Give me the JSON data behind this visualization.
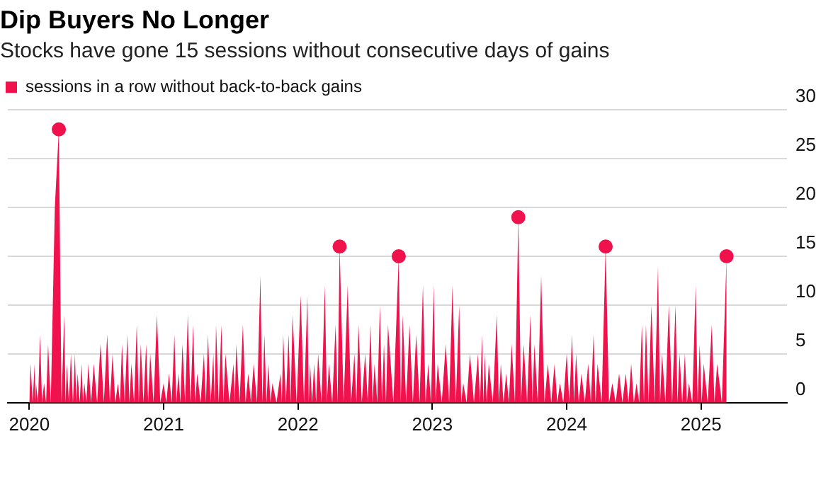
{
  "chart_data": {
    "type": "area",
    "title": "Dip Buyers No Longer",
    "subtitle": "Stocks have gone 15 sessions without consecutive days of gains",
    "series": [
      {
        "name": "sessions in a row without back-to-back gains",
        "type": "area",
        "color": "#f0124c",
        "x": [
          2020.0,
          2020.01,
          2020.025,
          2020.04,
          2020.045,
          2020.05,
          2020.065,
          2020.08,
          2020.095,
          2020.11,
          2020.125,
          2020.14,
          2020.16,
          2020.19,
          2020.22,
          2020.24,
          2020.26,
          2020.27,
          2020.28,
          2020.295,
          2020.31,
          2020.325,
          2020.34,
          2020.35,
          2020.36,
          2020.375,
          2020.39,
          2020.4,
          2020.41,
          2020.425,
          2020.44,
          2020.46,
          2020.48,
          2020.505,
          2020.53,
          2020.555,
          2020.58,
          2020.6,
          2020.62,
          2020.64,
          2020.66,
          2020.675,
          2020.69,
          2020.71,
          2020.73,
          2020.745,
          2020.76,
          2020.78,
          2020.8,
          2020.815,
          2020.83,
          2020.85,
          2020.87,
          2020.885,
          2020.9,
          2020.925,
          2020.95,
          2020.975,
          2021.0,
          2021.02,
          2021.04,
          2021.06,
          2021.08,
          2021.095,
          2021.11,
          2021.125,
          2021.14,
          2021.16,
          2021.18,
          2021.2,
          2021.22,
          2021.235,
          2021.25,
          2021.275,
          2021.3,
          2021.315,
          2021.33,
          2021.35,
          2021.37,
          2021.38,
          2021.39,
          2021.41,
          2021.43,
          2021.445,
          2021.46,
          2021.49,
          2021.52,
          2021.53,
          2021.54,
          2021.565,
          2021.59,
          2021.61,
          2021.63,
          2021.65,
          2021.67,
          2021.695,
          2021.72,
          2021.735,
          2021.75,
          2021.765,
          2021.78,
          2021.795,
          2021.81,
          2021.84,
          2021.87,
          2021.88,
          2021.89,
          2021.91,
          2021.93,
          2021.945,
          2021.96,
          2021.99,
          2022.02,
          2022.045,
          2022.07,
          2022.08,
          2022.09,
          2022.105,
          2022.12,
          2022.135,
          2022.15,
          2022.175,
          2022.2,
          2022.215,
          2022.23,
          2022.255,
          2022.28,
          2022.295,
          2022.31,
          2022.34,
          2022.37,
          2022.395,
          2022.42,
          2022.435,
          2022.45,
          2022.475,
          2022.5,
          2022.52,
          2022.54,
          2022.555,
          2022.57,
          2022.59,
          2022.61,
          2022.625,
          2022.64,
          2022.655,
          2022.67,
          2022.71,
          2022.75,
          2022.765,
          2022.78,
          2022.805,
          2022.83,
          2022.855,
          2022.88,
          2022.905,
          2022.93,
          2022.95,
          2022.97,
          2022.99,
          2023.01,
          2023.025,
          2023.04,
          2023.07,
          2023.1,
          2023.125,
          2023.15,
          2023.175,
          2023.2,
          2023.215,
          2023.23,
          2023.255,
          2023.28,
          2023.31,
          2023.34,
          2023.355,
          2023.37,
          2023.38,
          2023.39,
          2023.405,
          2023.42,
          2023.45,
          2023.48,
          2023.495,
          2023.51,
          2023.53,
          2023.55,
          2023.57,
          2023.59,
          2023.615,
          2023.64,
          2023.66,
          2023.68,
          2023.705,
          2023.73,
          2023.745,
          2023.76,
          2023.785,
          2023.81,
          2023.835,
          2023.86,
          2023.885,
          2023.91,
          2023.93,
          2023.95,
          2023.975,
          2024.0,
          2024.02,
          2024.04,
          2024.055,
          2024.07,
          2024.09,
          2024.11,
          2024.135,
          2024.16,
          2024.18,
          2024.2,
          2024.215,
          2024.23,
          2024.26,
          2024.29,
          2024.315,
          2024.34,
          2024.365,
          2024.39,
          2024.415,
          2024.44,
          2024.46,
          2024.48,
          2024.5,
          2024.52,
          2024.54,
          2024.56,
          2024.575,
          2024.59,
          2024.61,
          2024.63,
          2024.655,
          2024.68,
          2024.695,
          2024.71,
          2024.735,
          2024.76,
          2024.785,
          2024.81,
          2024.825,
          2024.84,
          2024.86,
          2024.88,
          2024.895,
          2024.91,
          2024.935,
          2024.96,
          2024.975,
          2024.99,
          2025.005,
          2025.02,
          2025.05,
          2025.08,
          2025.1,
          2025.12,
          2025.155,
          2025.19
        ],
        "values": [
          0,
          4,
          0,
          4,
          0,
          2,
          0,
          7,
          0,
          2,
          0,
          6,
          0,
          20,
          28,
          0,
          9,
          0,
          4,
          0,
          5,
          0,
          5,
          0,
          3,
          0,
          4,
          0,
          2,
          0,
          4,
          0,
          4,
          0,
          6,
          0,
          7,
          0,
          5,
          0,
          2,
          0,
          6,
          0,
          7,
          0,
          4,
          0,
          8,
          0,
          6,
          0,
          6,
          0,
          5,
          0,
          9,
          0,
          2,
          0,
          3,
          0,
          7,
          0,
          3,
          0,
          6,
          0,
          9,
          0,
          8,
          0,
          3,
          0,
          5,
          0,
          7,
          0,
          5,
          0,
          8,
          0,
          8,
          0,
          5,
          0,
          4,
          0,
          6,
          0,
          8,
          0,
          3,
          0,
          4,
          0,
          13,
          0,
          7,
          0,
          4,
          0,
          2,
          0,
          3,
          0,
          7,
          0,
          7,
          0,
          9,
          0,
          11,
          0,
          11,
          0,
          4,
          0,
          4,
          0,
          5,
          0,
          12,
          0,
          4,
          0,
          8,
          0,
          16,
          0,
          12,
          0,
          5,
          0,
          8,
          0,
          5,
          0,
          8,
          0,
          4,
          0,
          10,
          0,
          6,
          0,
          8,
          0,
          15,
          0,
          9,
          0,
          8,
          0,
          7,
          0,
          12,
          0,
          4,
          0,
          12,
          0,
          4,
          0,
          6,
          0,
          12,
          0,
          10,
          0,
          2,
          0,
          5,
          0,
          5,
          0,
          7,
          0,
          5,
          0,
          4,
          0,
          9,
          0,
          4,
          0,
          3,
          0,
          6,
          0,
          19,
          0,
          6,
          0,
          9,
          0,
          6,
          0,
          13,
          0,
          4,
          0,
          4,
          0,
          2,
          0,
          5,
          0,
          7,
          0,
          5,
          0,
          3,
          0,
          4,
          0,
          7,
          0,
          4,
          0,
          16,
          0,
          2,
          0,
          3,
          0,
          3,
          0,
          4,
          0,
          2,
          0,
          8,
          0,
          8,
          0,
          10,
          0,
          14,
          0,
          5,
          0,
          10,
          0,
          10,
          0,
          5,
          0,
          5,
          0,
          2,
          0,
          12,
          0,
          6,
          0,
          4,
          0,
          8,
          0,
          4,
          0,
          15
        ]
      },
      {
        "type": "scatter",
        "color": "#f0124c",
        "marker": "circle",
        "x": [
          2020.22,
          2022.31,
          2022.75,
          2023.64,
          2024.29,
          2025.19
        ],
        "values": [
          28,
          16,
          15,
          19,
          16,
          15
        ]
      }
    ],
    "xlim": [
      2019.84,
      2025.64
    ],
    "xticks": [
      2020,
      2021,
      2022,
      2023,
      2024,
      2025
    ],
    "ylim": [
      0,
      30
    ],
    "yticks": [
      0,
      5,
      10,
      15,
      20,
      25,
      30
    ],
    "grid": "y",
    "legend": "top left"
  }
}
